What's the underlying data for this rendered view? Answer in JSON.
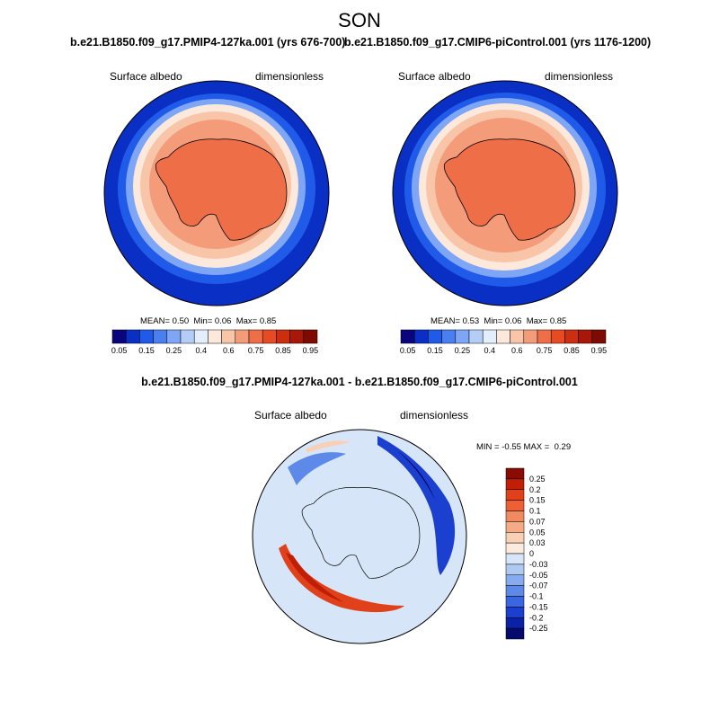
{
  "season_title": "SON",
  "panels": [
    {
      "case_title": "b.e21.B1850.f09_g17.PMIP4-127ka.001 (yrs 676-700)",
      "variable": "Surface albedo",
      "units": "dimensionless",
      "stats": {
        "mean_label": "MEAN=",
        "mean": "0.50",
        "min_label": "Min=",
        "min": "0.06",
        "max_label": "Max=",
        "max": "0.85"
      }
    },
    {
      "case_title": "b.e21.B1850.f09_g17.CMIP6-piControl.001 (yrs 1176-1200)",
      "variable": "Surface albedo",
      "units": "dimensionless",
      "stats": {
        "mean_label": "MEAN=",
        "mean": "0.53",
        "min_label": "Min=",
        "min": "0.06",
        "max_label": "Max=",
        "max": "0.85"
      }
    }
  ],
  "colorbar_levels": {
    "ticks": [
      "0.05",
      "0.15",
      "0.25",
      "0.4",
      "0.6",
      "0.75",
      "0.85",
      "0.95"
    ],
    "colors": [
      "#08057e",
      "#0a2fc4",
      "#1f5ae8",
      "#4a7ff0",
      "#7ea6f4",
      "#b4cdf7",
      "#e2eefb",
      "#fde9dc",
      "#f9c5a9",
      "#f49b79",
      "#ee6e48",
      "#e64b22",
      "#cc2e10",
      "#a81808",
      "#7d0a03"
    ]
  },
  "diff": {
    "title": "b.e21.B1850.f09_g17.PMIP4-127ka.001 - b.e21.B1850.f09_g17.CMIP6-piControl.001",
    "variable": "Surface albedo",
    "units": "dimensionless",
    "min_label": "MIN =",
    "min": "-0.55",
    "max_label": "MAX =",
    "max": "0.29",
    "levels": [
      "0.25",
      "0.2",
      "0.15",
      "0.1",
      "0.07",
      "0.05",
      "0.03",
      "0",
      "-0.03",
      "-0.05",
      "-0.07",
      "-0.1",
      "-0.15",
      "-0.2",
      "-0.25"
    ],
    "colors": [
      "#8a0b00",
      "#c01f05",
      "#e0401a",
      "#ee6034",
      "#f18a5e",
      "#f5ac86",
      "#f9d0b6",
      "#fcebdd",
      "#d6e6f8",
      "#aecaf3",
      "#86abee",
      "#5d8ae9",
      "#3a66e2",
      "#1b3fce",
      "#0a22a8",
      "#050a6e"
    ]
  }
}
